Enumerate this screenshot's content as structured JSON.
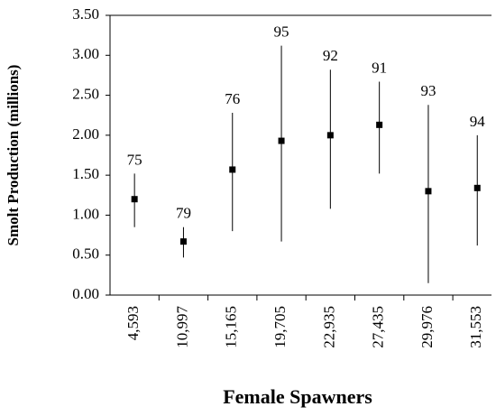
{
  "chart_data": {
    "type": "errorbar",
    "x_label": "Female Spawners",
    "y_label": "Smolt Production (millions)",
    "categories": [
      "4,593",
      "10,997",
      "15,165",
      "19,705",
      "22,935",
      "27,435",
      "29,976",
      "31,553"
    ],
    "values": [
      1.2,
      0.67,
      1.57,
      1.93,
      2.0,
      2.13,
      1.3,
      1.34
    ],
    "low": [
      0.85,
      0.47,
      0.8,
      0.67,
      1.08,
      1.52,
      0.15,
      0.62
    ],
    "high": [
      1.52,
      0.85,
      2.28,
      3.12,
      2.82,
      2.67,
      2.38,
      2.0
    ],
    "labels": [
      "75",
      "79",
      "76",
      "95",
      "92",
      "91",
      "93",
      "94"
    ],
    "color": "#000000",
    "ylim": [
      0,
      3.5
    ],
    "yticks": [
      {
        "value": 0,
        "label": "0.00"
      },
      {
        "value": 0.5,
        "label": "0.50"
      },
      {
        "value": 1,
        "label": "1.00"
      },
      {
        "value": 1.5,
        "label": "1.50"
      },
      {
        "value": 2,
        "label": "2.00"
      },
      {
        "value": 2.5,
        "label": "2.50"
      },
      {
        "value": 3,
        "label": "3.00"
      },
      {
        "value": 3.5,
        "label": "3.50"
      }
    ]
  }
}
